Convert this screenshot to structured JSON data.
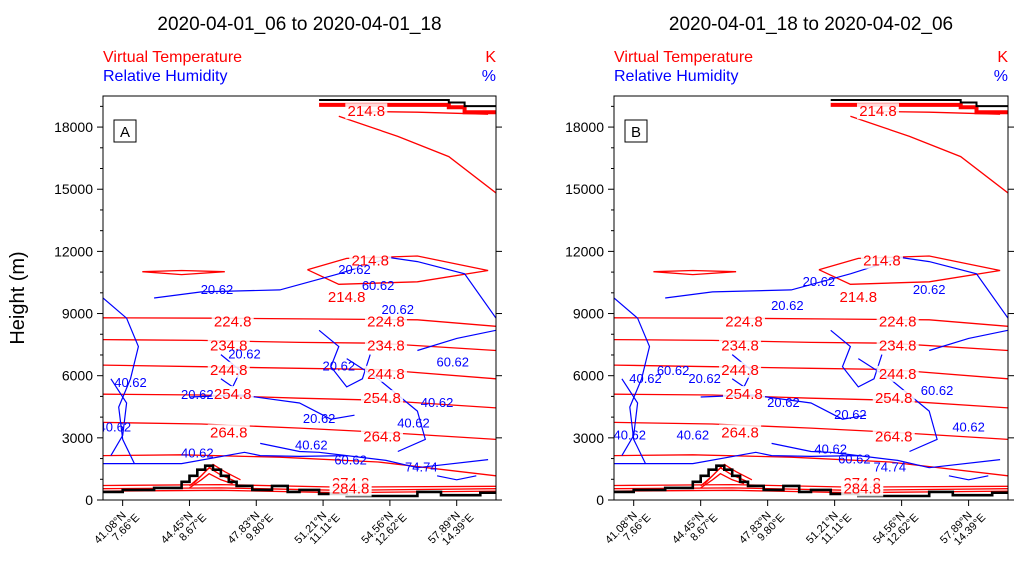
{
  "chart_data": [
    {
      "type": "contour",
      "panel_label": "A",
      "title": "2020-04-01_06 to 2020-04-01_18",
      "legend": [
        {
          "name": "Virtual Temperature",
          "unit": "K",
          "color": "#ff0000"
        },
        {
          "name": "Relative Humidity",
          "unit": "%",
          "color": "#0000ff"
        }
      ],
      "ylabel": "Height (m)",
      "ylim": [
        0,
        19500
      ],
      "yticks": [
        "0",
        "3000",
        "6000",
        "9000",
        "12000",
        "15000",
        "18000"
      ],
      "xticks": [
        {
          "lat": "41.08°N",
          "lon": "7.66°E"
        },
        {
          "lat": "44.45°N",
          "lon": "8.67°E"
        },
        {
          "lat": "47.83°N",
          "lon": "9.80°E"
        },
        {
          "lat": "51.21°N",
          "lon": "11.11°E"
        },
        {
          "lat": "54.56°N",
          "lon": "12.62°E"
        },
        {
          "lat": "57.89°N",
          "lon": "14.39°E"
        }
      ],
      "temperature_labels": [
        "214.8",
        "214.8",
        "214.8",
        "224.8",
        "224.8",
        "234.8",
        "234.8",
        "244.8",
        "244.8",
        "254.8",
        "254.8",
        "264.8",
        "264.8",
        "274.8",
        "284.8"
      ],
      "humidity_labels": [
        "20.62",
        "20.62",
        "20.62",
        "20.62",
        "20.62",
        "20.62",
        "40.62",
        "40.62",
        "40.62",
        "40.62",
        "40.62",
        "60.62",
        "60.62",
        "74.74",
        "20.62",
        "40.62",
        "60.62"
      ]
    },
    {
      "type": "contour",
      "panel_label": "B",
      "title": "2020-04-01_18 to 2020-04-02_06",
      "legend": [
        {
          "name": "Virtual Temperature",
          "unit": "K",
          "color": "#ff0000"
        },
        {
          "name": "Relative Humidity",
          "unit": "%",
          "color": "#0000ff"
        }
      ],
      "ylabel": "",
      "ylim": [
        0,
        19500
      ],
      "yticks": [
        "0",
        "3000",
        "6000",
        "9000",
        "12000",
        "15000",
        "18000"
      ],
      "xticks": [
        {
          "lat": "41.08°N",
          "lon": "7.66°E"
        },
        {
          "lat": "44.45°N",
          "lon": "8.67°E"
        },
        {
          "lat": "47.83°N",
          "lon": "9.80°E"
        },
        {
          "lat": "51.21°N",
          "lon": "11.11°E"
        },
        {
          "lat": "54.56°N",
          "lon": "12.62°E"
        },
        {
          "lat": "57.89°N",
          "lon": "14.39°E"
        }
      ],
      "temperature_labels": [
        "214.8",
        "214.8",
        "214.8",
        "224.8",
        "224.8",
        "234.8",
        "234.8",
        "244.8",
        "244.8",
        "254.8",
        "254.8",
        "264.8",
        "264.8",
        "274.8",
        "284.8"
      ],
      "humidity_labels": [
        "20.62",
        "20.62",
        "20.62",
        "20.62",
        "20.62",
        "40.62",
        "40.62",
        "40.62",
        "40.62",
        "60.62",
        "60.62",
        "74.74",
        "40.62",
        "20.62",
        "60.62"
      ]
    }
  ]
}
